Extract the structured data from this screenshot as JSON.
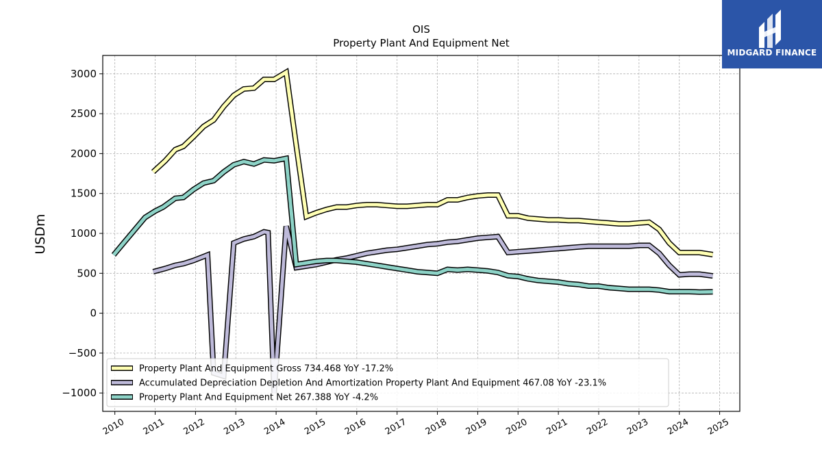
{
  "brand": {
    "name": "MIDGARD FINANCE",
    "color": "#2b55a8"
  },
  "chart_data": {
    "type": "line",
    "title": "OIS",
    "subtitle": "Property Plant And Equipment Net",
    "ylabel": "USDm",
    "xlabel": "",
    "ylim": [
      -1230,
      3230
    ],
    "xlim": [
      2009.7,
      2025.5
    ],
    "yticks": [
      3000,
      2500,
      2000,
      1500,
      1000,
      500,
      0,
      -500,
      -1000
    ],
    "ytick_labels": [
      "3000",
      "2500",
      "2000",
      "1500",
      "1000",
      "500",
      "0",
      "−500",
      "−1000"
    ],
    "xticks": [
      2010,
      2011,
      2012,
      2013,
      2014,
      2015,
      2016,
      2017,
      2018,
      2019,
      2020,
      2021,
      2022,
      2023,
      2024,
      2025
    ],
    "xtick_labels": [
      "2010",
      "2011",
      "2012",
      "2013",
      "2014",
      "2015",
      "2016",
      "2017",
      "2018",
      "2019",
      "2020",
      "2021",
      "2022",
      "2023",
      "2024",
      "2025"
    ],
    "grid": true,
    "legend_position": "bottom-left",
    "series": [
      {
        "name": "Property Plant And Equipment Gross",
        "legend_label": "Property Plant And Equipment Gross  734.468 YoY -17.2%",
        "color": "#ffffb3",
        "points": [
          [
            2010.95,
            1770
          ],
          [
            2011.25,
            1910
          ],
          [
            2011.5,
            2050
          ],
          [
            2011.7,
            2090
          ],
          [
            2011.95,
            2210
          ],
          [
            2012.2,
            2340
          ],
          [
            2012.45,
            2420
          ],
          [
            2012.7,
            2590
          ],
          [
            2012.95,
            2730
          ],
          [
            2013.2,
            2810
          ],
          [
            2013.45,
            2820
          ],
          [
            2013.7,
            2930
          ],
          [
            2013.95,
            2930
          ],
          [
            2014.25,
            3020
          ],
          [
            2014.5,
            2100
          ],
          [
            2014.75,
            1210
          ],
          [
            2015.0,
            1260
          ],
          [
            2015.25,
            1300
          ],
          [
            2015.5,
            1330
          ],
          [
            2015.75,
            1330
          ],
          [
            2016.0,
            1350
          ],
          [
            2016.25,
            1360
          ],
          [
            2016.5,
            1360
          ],
          [
            2016.75,
            1350
          ],
          [
            2017.0,
            1340
          ],
          [
            2017.25,
            1340
          ],
          [
            2017.5,
            1350
          ],
          [
            2017.75,
            1360
          ],
          [
            2018.0,
            1360
          ],
          [
            2018.25,
            1420
          ],
          [
            2018.5,
            1420
          ],
          [
            2018.75,
            1450
          ],
          [
            2019.0,
            1470
          ],
          [
            2019.25,
            1480
          ],
          [
            2019.5,
            1480
          ],
          [
            2019.75,
            1220
          ],
          [
            2020.0,
            1220
          ],
          [
            2020.25,
            1190
          ],
          [
            2020.5,
            1180
          ],
          [
            2020.75,
            1170
          ],
          [
            2021.0,
            1170
          ],
          [
            2021.25,
            1160
          ],
          [
            2021.5,
            1160
          ],
          [
            2021.75,
            1150
          ],
          [
            2022.0,
            1140
          ],
          [
            2022.25,
            1130
          ],
          [
            2022.5,
            1120
          ],
          [
            2022.75,
            1120
          ],
          [
            2023.0,
            1130
          ],
          [
            2023.25,
            1140
          ],
          [
            2023.5,
            1050
          ],
          [
            2023.75,
            880
          ],
          [
            2024.0,
            760
          ],
          [
            2024.25,
            760
          ],
          [
            2024.5,
            760
          ],
          [
            2024.83,
            734.468
          ]
        ]
      },
      {
        "name": "Accumulated Depreciation Depletion And Amortization Property Plant And Equipment",
        "legend_label": "Accumulated Depreciation Depletion And Amortization Property Plant And Equipment  467.08 YoY -23.1%",
        "color": "#bebada",
        "points": [
          [
            2010.95,
            520
          ],
          [
            2011.25,
            560
          ],
          [
            2011.5,
            600
          ],
          [
            2011.7,
            620
          ],
          [
            2011.95,
            660
          ],
          [
            2012.2,
            710
          ],
          [
            2012.3,
            730
          ],
          [
            2012.45,
            -750
          ],
          [
            2012.7,
            -790
          ],
          [
            2012.95,
            880
          ],
          [
            2013.2,
            930
          ],
          [
            2013.45,
            960
          ],
          [
            2013.7,
            1020
          ],
          [
            2013.8,
            1010
          ],
          [
            2013.95,
            -1000
          ],
          [
            2014.25,
            1090
          ],
          [
            2014.5,
            570
          ],
          [
            2014.75,
            590
          ],
          [
            2015.0,
            610
          ],
          [
            2015.25,
            640
          ],
          [
            2015.5,
            670
          ],
          [
            2015.75,
            690
          ],
          [
            2016.0,
            720
          ],
          [
            2016.25,
            750
          ],
          [
            2016.5,
            770
          ],
          [
            2016.75,
            790
          ],
          [
            2017.0,
            800
          ],
          [
            2017.25,
            820
          ],
          [
            2017.5,
            840
          ],
          [
            2017.75,
            860
          ],
          [
            2018.0,
            870
          ],
          [
            2018.25,
            890
          ],
          [
            2018.5,
            900
          ],
          [
            2018.75,
            920
          ],
          [
            2019.0,
            940
          ],
          [
            2019.25,
            950
          ],
          [
            2019.5,
            960
          ],
          [
            2019.75,
            760
          ],
          [
            2020.0,
            770
          ],
          [
            2020.25,
            780
          ],
          [
            2020.5,
            790
          ],
          [
            2020.75,
            800
          ],
          [
            2021.0,
            810
          ],
          [
            2021.25,
            820
          ],
          [
            2021.5,
            830
          ],
          [
            2021.75,
            840
          ],
          [
            2022.0,
            840
          ],
          [
            2022.25,
            840
          ],
          [
            2022.5,
            840
          ],
          [
            2022.75,
            840
          ],
          [
            2023.0,
            850
          ],
          [
            2023.25,
            850
          ],
          [
            2023.5,
            750
          ],
          [
            2023.75,
            600
          ],
          [
            2024.0,
            480
          ],
          [
            2024.25,
            490
          ],
          [
            2024.5,
            490
          ],
          [
            2024.83,
            467.08
          ]
        ]
      },
      {
        "name": "Property Plant And Equipment Net",
        "legend_label": "Property Plant And Equipment Net  267.388 YoY -4.2%",
        "color": "#8dd3c7",
        "points": [
          [
            2009.97,
            730
          ],
          [
            2010.25,
            900
          ],
          [
            2010.5,
            1050
          ],
          [
            2010.75,
            1200
          ],
          [
            2011.0,
            1280
          ],
          [
            2011.2,
            1330
          ],
          [
            2011.5,
            1440
          ],
          [
            2011.7,
            1450
          ],
          [
            2011.95,
            1550
          ],
          [
            2012.2,
            1630
          ],
          [
            2012.45,
            1660
          ],
          [
            2012.7,
            1770
          ],
          [
            2012.95,
            1860
          ],
          [
            2013.2,
            1900
          ],
          [
            2013.45,
            1870
          ],
          [
            2013.7,
            1920
          ],
          [
            2013.95,
            1910
          ],
          [
            2014.25,
            1940
          ],
          [
            2014.5,
            610
          ],
          [
            2014.75,
            630
          ],
          [
            2015.0,
            650
          ],
          [
            2015.25,
            660
          ],
          [
            2015.5,
            660
          ],
          [
            2015.75,
            650
          ],
          [
            2016.0,
            640
          ],
          [
            2016.25,
            620
          ],
          [
            2016.5,
            600
          ],
          [
            2016.75,
            580
          ],
          [
            2017.0,
            560
          ],
          [
            2017.25,
            540
          ],
          [
            2017.5,
            520
          ],
          [
            2017.75,
            510
          ],
          [
            2018.0,
            500
          ],
          [
            2018.25,
            550
          ],
          [
            2018.5,
            540
          ],
          [
            2018.75,
            550
          ],
          [
            2019.0,
            540
          ],
          [
            2019.25,
            530
          ],
          [
            2019.5,
            510
          ],
          [
            2019.75,
            470
          ],
          [
            2020.0,
            460
          ],
          [
            2020.25,
            430
          ],
          [
            2020.5,
            410
          ],
          [
            2020.75,
            400
          ],
          [
            2021.0,
            390
          ],
          [
            2021.25,
            370
          ],
          [
            2021.5,
            360
          ],
          [
            2021.75,
            340
          ],
          [
            2022.0,
            340
          ],
          [
            2022.25,
            320
          ],
          [
            2022.5,
            310
          ],
          [
            2022.75,
            300
          ],
          [
            2023.0,
            300
          ],
          [
            2023.25,
            300
          ],
          [
            2023.5,
            290
          ],
          [
            2023.75,
            270
          ],
          [
            2024.0,
            270
          ],
          [
            2024.25,
            270
          ],
          [
            2024.5,
            265
          ],
          [
            2024.83,
            267.388
          ]
        ]
      }
    ]
  }
}
